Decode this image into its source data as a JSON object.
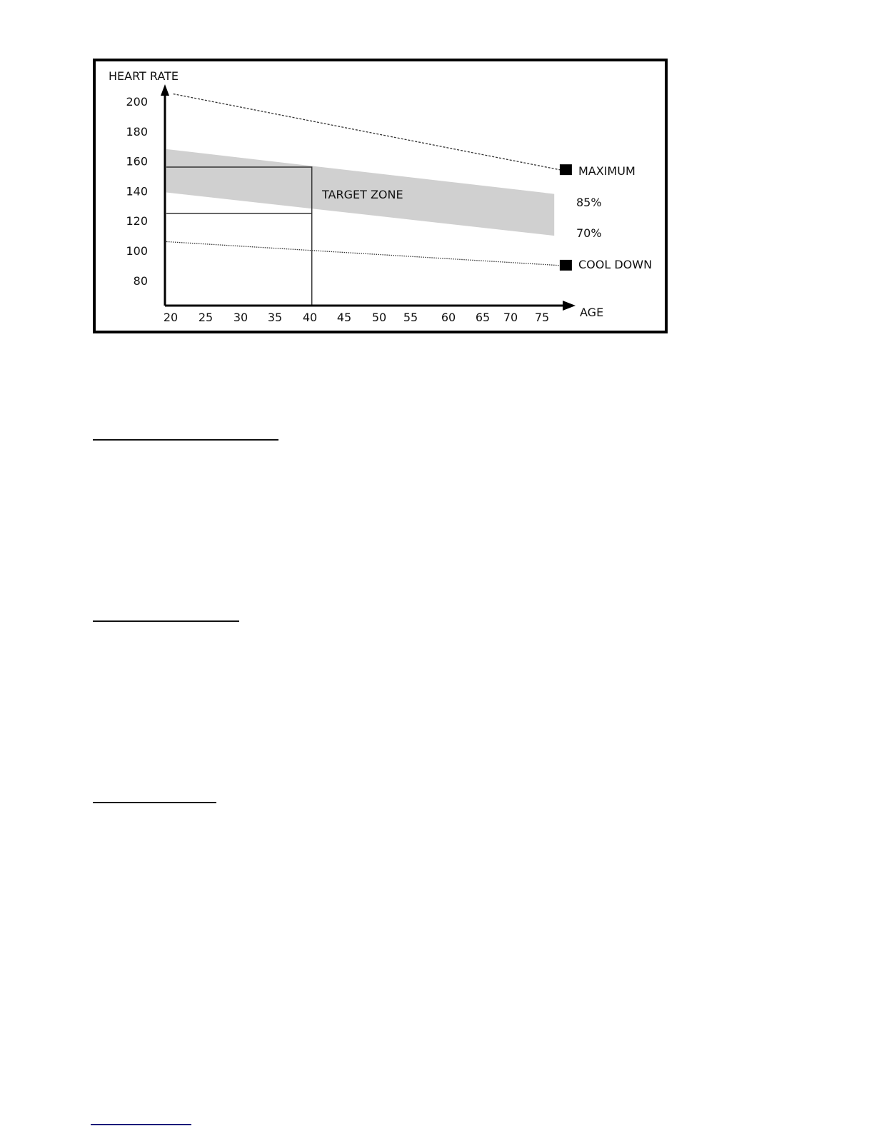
{
  "chart_data": {
    "type": "line",
    "ylabel": "HEART RATE",
    "xlabel": "AGE",
    "x_ticks": [
      20,
      25,
      30,
      35,
      40,
      45,
      50,
      55,
      60,
      65,
      70,
      75
    ],
    "y_ticks": [
      200,
      180,
      160,
      140,
      120,
      100,
      80
    ],
    "xlim": [
      20,
      80
    ],
    "ylim": [
      63,
      212
    ],
    "grid": false,
    "series": [
      {
        "name": "MAXIMUM",
        "style": "dashed",
        "marker": "square",
        "x": [
          21,
          77
        ],
        "y": [
          205,
          154
        ]
      },
      {
        "name": "COOL DOWN",
        "style": "dotted",
        "marker": "square",
        "x": [
          20,
          77
        ],
        "y": [
          106,
          90
        ]
      }
    ],
    "band": {
      "name": "TARGET ZONE",
      "upper_label": "85%",
      "lower_label": "70%",
      "x": [
        20,
        76
      ],
      "upper": [
        168,
        138
      ],
      "lower": [
        139,
        110
      ],
      "color": "#d0d0d0"
    },
    "reference_example": {
      "age": 41,
      "upper": 156,
      "lower": 125
    }
  }
}
